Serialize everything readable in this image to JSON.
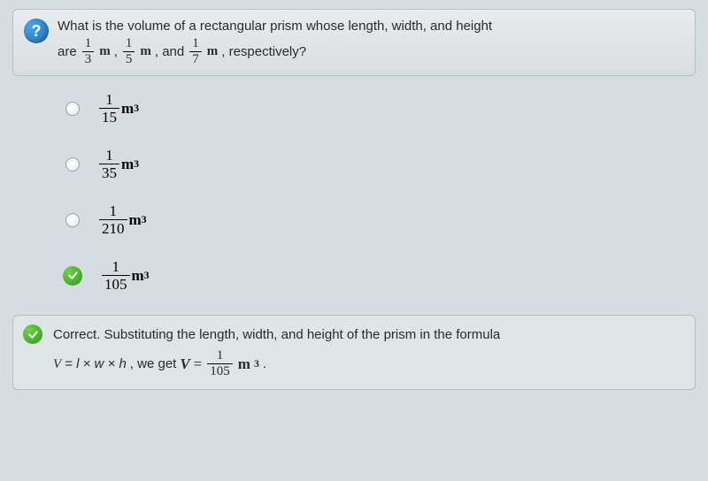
{
  "colors": {
    "page_bg": "#d6dce0",
    "box_bg_top": "#e8ecef",
    "box_bg_bot": "#d8dde0",
    "box_border": "#b8bec3",
    "text": "#2a2a2a",
    "icon_blue_light": "#4aa3e8",
    "icon_blue_dark": "#1a6fb5",
    "correct_green_light": "#6fd24a",
    "correct_green_dark": "#2e9a18",
    "radio_border": "#9aa0a5"
  },
  "question": {
    "icon": "?",
    "line1": "What is the volume of a rectangular prism whose length, width, and height",
    "are": "are",
    "f1_num": "1",
    "f1_den": "3",
    "unit1": "m",
    "sep1": ",",
    "f2_num": "1",
    "f2_den": "5",
    "unit2": "m",
    "sep2": ", and",
    "f3_num": "1",
    "f3_den": "7",
    "unit3": "m",
    "tail": ", respectively?"
  },
  "options": [
    {
      "num": "1",
      "den": "15",
      "unit": "m",
      "exp": "3",
      "selected": false,
      "correct": false
    },
    {
      "num": "1",
      "den": "35",
      "unit": "m",
      "exp": "3",
      "selected": false,
      "correct": false
    },
    {
      "num": "1",
      "den": "210",
      "unit": "m",
      "exp": "3",
      "selected": false,
      "correct": false
    },
    {
      "num": "1",
      "den": "105",
      "unit": "m",
      "exp": "3",
      "selected": true,
      "correct": true
    }
  ],
  "feedback": {
    "line1": "Correct. Substituting the length, width, and height of the prism in the formula",
    "formula_lhs_var": "V",
    "formula_lhs_rest": "= l × w × h",
    "we_get": ", we get",
    "res_var": "V",
    "eq": "=",
    "res_num": "1",
    "res_den": "105",
    "res_unit": "m",
    "res_exp": "3",
    "period": "."
  }
}
